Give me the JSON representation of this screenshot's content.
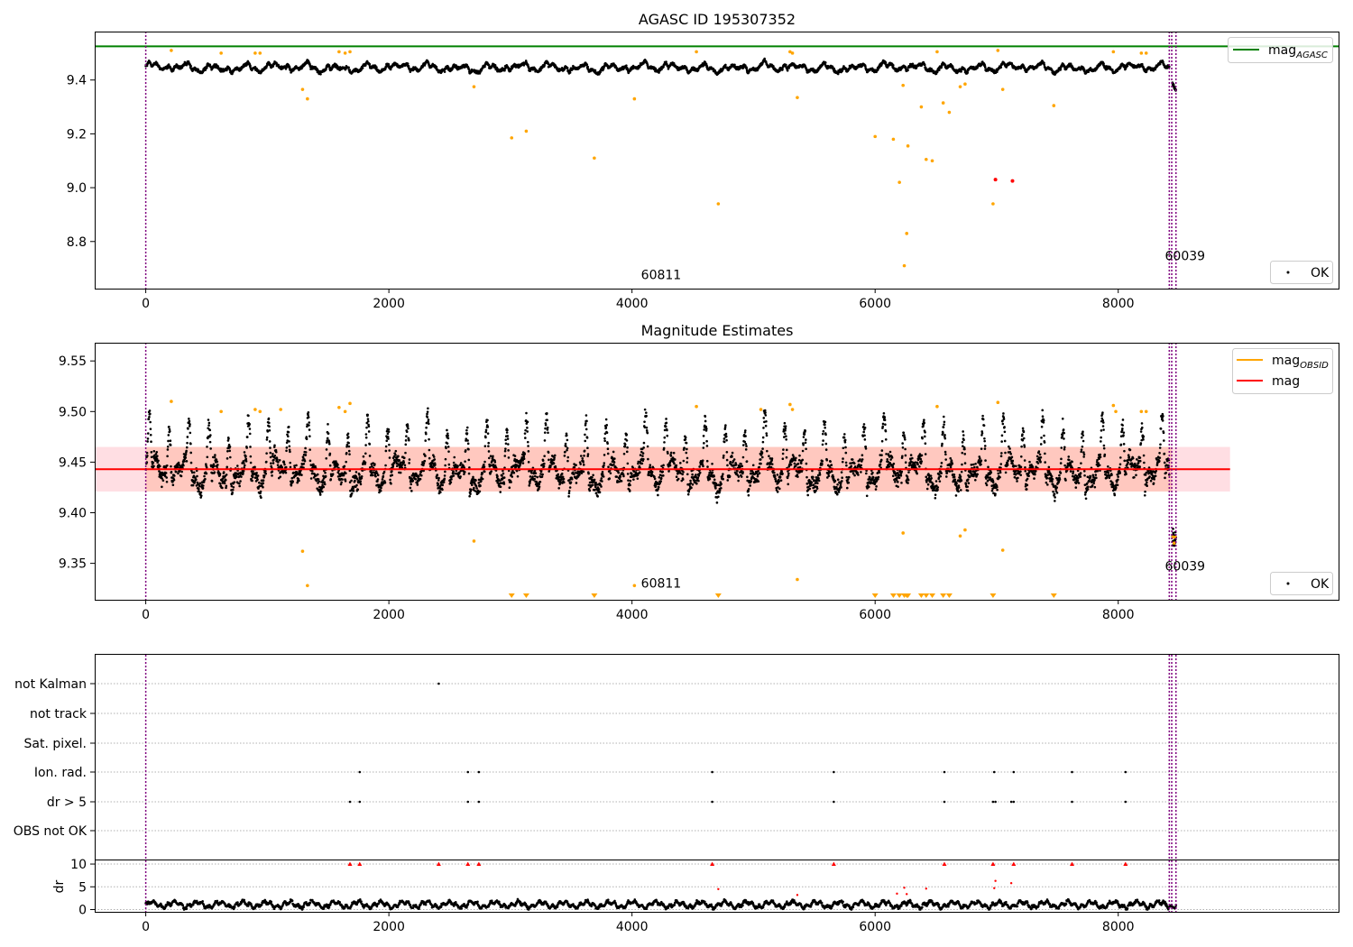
{
  "chart_data": [
    {
      "type": "scatter",
      "panel": "top",
      "title": "AGASC ID 195307352",
      "x_range": [
        -420,
        9820
      ],
      "y_range": [
        8.625,
        9.58
      ],
      "xticks": [
        "0",
        "2000",
        "4000",
        "6000",
        "8000"
      ],
      "xtick_values": [
        0,
        2000,
        4000,
        6000,
        8000
      ],
      "yticks": [
        "8.8",
        "9.0",
        "9.2",
        "9.4"
      ],
      "ytick_values": [
        8.8,
        9.0,
        9.2,
        9.4
      ],
      "vlines": [
        0,
        8420,
        8440,
        8475
      ],
      "hline_mag_agasc": 9.525,
      "legends": {
        "upper": {
          "label": "mag",
          "subscript": "AGASC",
          "color": "#008000"
        },
        "lower": {
          "label": "OK"
        }
      },
      "annotations": [
        {
          "text": "60811",
          "x": 4000,
          "y": 8.66
        },
        {
          "text": "60039",
          "x": 8310,
          "y": 8.73
        }
      ],
      "ok_band": {
        "baseline": 9.443,
        "amplitude": 0.045,
        "x_start": 0,
        "x_end": 8420
      },
      "tail": {
        "x_start": 8445,
        "x_end": 8475,
        "y_start": 9.39,
        "y_end": 9.36
      },
      "orange_points": [
        [
          210,
          9.51
        ],
        [
          620,
          9.5
        ],
        [
          900,
          9.5
        ],
        [
          940,
          9.5
        ],
        [
          1290,
          9.365
        ],
        [
          1330,
          9.33
        ],
        [
          1590,
          9.505
        ],
        [
          1640,
          9.5
        ],
        [
          1680,
          9.505
        ],
        [
          2700,
          9.375
        ],
        [
          3010,
          9.185
        ],
        [
          3130,
          9.21
        ],
        [
          3690,
          9.11
        ],
        [
          4020,
          9.33
        ],
        [
          4530,
          9.505
        ],
        [
          4710,
          8.94
        ],
        [
          5300,
          9.505
        ],
        [
          5320,
          9.5
        ],
        [
          5360,
          9.335
        ],
        [
          6000,
          9.19
        ],
        [
          6150,
          9.18
        ],
        [
          6200,
          9.02
        ],
        [
          6230,
          9.38
        ],
        [
          6240,
          8.71
        ],
        [
          6260,
          8.83
        ],
        [
          6270,
          9.155
        ],
        [
          6380,
          9.3
        ],
        [
          6420,
          9.105
        ],
        [
          6470,
          9.1
        ],
        [
          6510,
          9.505
        ],
        [
          6560,
          9.315
        ],
        [
          6610,
          9.28
        ],
        [
          6700,
          9.375
        ],
        [
          6740,
          9.385
        ],
        [
          6970,
          8.94
        ],
        [
          7010,
          9.51
        ],
        [
          7050,
          9.365
        ],
        [
          7470,
          9.305
        ],
        [
          7960,
          9.505
        ],
        [
          8190,
          9.5
        ],
        [
          8230,
          9.5
        ]
      ],
      "red_points": [
        [
          6990,
          9.03
        ],
        [
          7130,
          9.025
        ]
      ]
    },
    {
      "type": "scatter",
      "panel": "middle",
      "title": "Magnitude Estimates",
      "x_range": [
        -420,
        9820
      ],
      "y_range": [
        9.314,
        9.568
      ],
      "xticks": [
        "0",
        "2000",
        "4000",
        "6000",
        "8000"
      ],
      "xtick_values": [
        0,
        2000,
        4000,
        6000,
        8000
      ],
      "yticks": [
        "9.35",
        "9.40",
        "9.45",
        "9.50",
        "9.55"
      ],
      "ytick_values": [
        9.35,
        9.4,
        9.45,
        9.5,
        9.55
      ],
      "vlines": [
        0,
        8420,
        8440,
        8475
      ],
      "mag_line": 9.443,
      "mag_band": [
        9.421,
        9.465
      ],
      "mag_band_x_end": 8920,
      "legends": {
        "upper": [
          {
            "label": "mag",
            "subscript": "OBSID",
            "color": "#FFA500"
          },
          {
            "label": "mag",
            "subscript": "",
            "color": "#FF0000"
          }
        ],
        "lower": {
          "label": "OK"
        }
      },
      "annotations": [
        {
          "text": "60811",
          "x": 4000,
          "y": 9.326
        },
        {
          "text": "60039",
          "x": 8310,
          "y": 9.343
        }
      ],
      "orange_points": [
        [
          210,
          9.51
        ],
        [
          620,
          9.5
        ],
        [
          900,
          9.502
        ],
        [
          940,
          9.5
        ],
        [
          1110,
          9.502
        ],
        [
          1290,
          9.362
        ],
        [
          1330,
          9.328
        ],
        [
          1590,
          9.504
        ],
        [
          1640,
          9.5
        ],
        [
          1680,
          9.508
        ],
        [
          2700,
          9.372
        ],
        [
          4020,
          9.328
        ],
        [
          4530,
          9.505
        ],
        [
          5060,
          9.502
        ],
        [
          5300,
          9.507
        ],
        [
          5320,
          9.502
        ],
        [
          5360,
          9.334
        ],
        [
          6230,
          9.38
        ],
        [
          6510,
          9.505
        ],
        [
          6700,
          9.377
        ],
        [
          6740,
          9.383
        ],
        [
          7010,
          9.509
        ],
        [
          7050,
          9.363
        ],
        [
          7960,
          9.506
        ],
        [
          7980,
          9.5
        ],
        [
          8190,
          9.5
        ],
        [
          8230,
          9.5
        ],
        [
          8450,
          9.376
        ],
        [
          8460,
          9.37
        ]
      ],
      "clipped_markers_x": [
        3010,
        3130,
        3690,
        4710,
        6000,
        6150,
        6200,
        6240,
        6260,
        6270,
        6380,
        6420,
        6470,
        6560,
        6610,
        6970,
        7470
      ]
    },
    {
      "type": "scatter",
      "panel": "flags",
      "x_range": [
        -420,
        9820
      ],
      "categories": [
        "not Kalman",
        "not track",
        "Sat. pixel.",
        "Ion. rad.",
        "dr > 5",
        "OBS not OK"
      ],
      "flag_points": {
        "not Kalman": [
          2410
        ],
        "not track": [],
        "Sat. pixel.": [],
        "Ion. rad.": [
          1760,
          2650,
          2740,
          4660,
          5660,
          6570,
          6980,
          7140,
          7620,
          8060
        ],
        "dr > 5": [
          1680,
          1760,
          2650,
          2740,
          4660,
          5660,
          6570,
          6970,
          6990,
          7120,
          7140,
          7620,
          8060
        ],
        "OBS not OK": []
      },
      "vlines": [
        0,
        8420,
        8440,
        8475
      ]
    },
    {
      "type": "scatter",
      "panel": "dr",
      "ylabel": "dr",
      "x_range": [
        -420,
        9820
      ],
      "y_range": [
        -0.5,
        10.8
      ],
      "xticks": [
        "0",
        "2000",
        "4000",
        "6000",
        "8000"
      ],
      "xtick_values": [
        0,
        2000,
        4000,
        6000,
        8000
      ],
      "yticks": [
        "0",
        "5",
        "10"
      ],
      "ytick_values": [
        0,
        5,
        10
      ],
      "clip_at": 10,
      "clipped_x": [
        1680,
        1760,
        2410,
        2650,
        2740,
        4660,
        5660,
        6570,
        6970,
        7140,
        7620,
        8060
      ],
      "red_points": [
        [
          4710,
          4.5
        ],
        [
          5360,
          3.2
        ],
        [
          6180,
          3.5
        ],
        [
          6240,
          4.8
        ],
        [
          6260,
          3.4
        ],
        [
          6420,
          4.6
        ],
        [
          6980,
          4.7
        ],
        [
          6990,
          6.3
        ],
        [
          7120,
          5.8
        ]
      ],
      "vlines": [
        0,
        8420,
        8440,
        8475
      ]
    }
  ]
}
